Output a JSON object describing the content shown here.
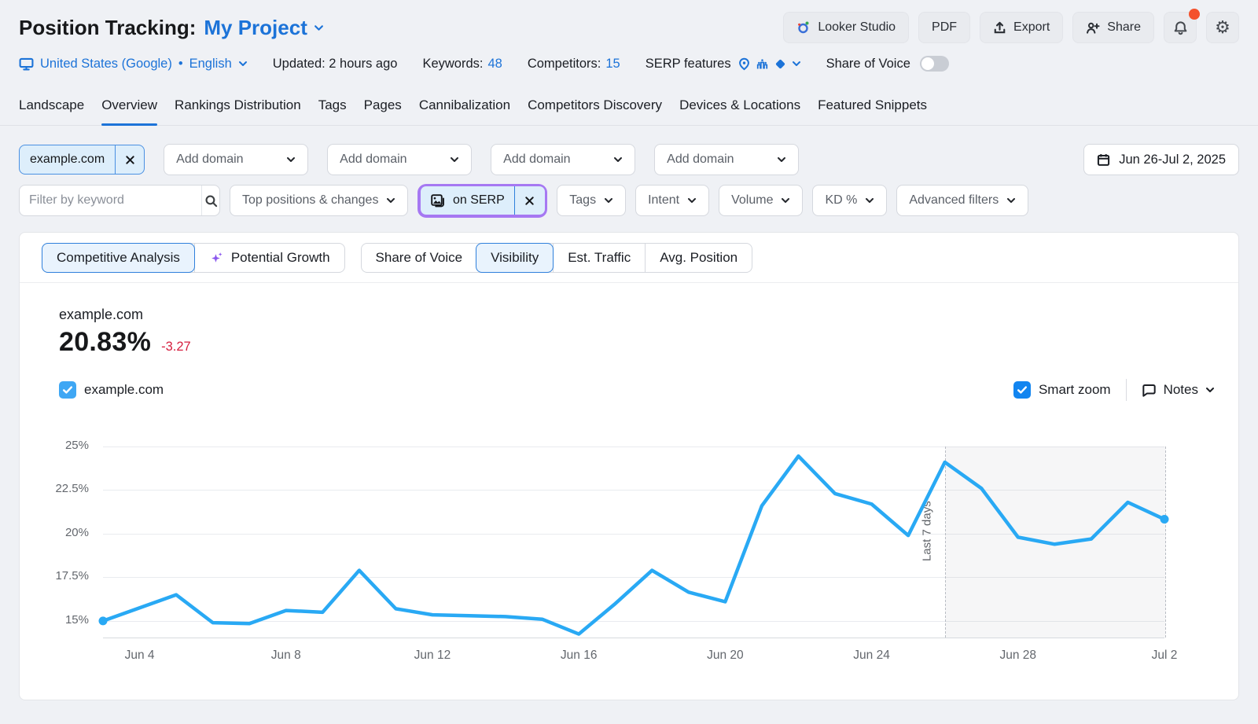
{
  "page": {
    "title": "Position Tracking:",
    "project_name": "My Project"
  },
  "toolbar": {
    "looker_studio": "Looker Studio",
    "pdf": "PDF",
    "export": "Export",
    "share": "Share"
  },
  "meta": {
    "location": "United States (Google)",
    "dot": "•",
    "language": "English",
    "updated": "Updated: 2 hours ago",
    "keywords_label": "Keywords:",
    "keywords_value": "48",
    "competitors_label": "Competitors:",
    "competitors_value": "15",
    "serp_features_label": "SERP features",
    "share_of_voice_label": "Share of Voice"
  },
  "tabs": {
    "items": [
      "Landscape",
      "Overview",
      "Rankings Distribution",
      "Tags",
      "Pages",
      "Cannibalization",
      "Competitors Discovery",
      "Devices & Locations",
      "Featured Snippets"
    ],
    "active": "Overview"
  },
  "filters": {
    "domain_chip": "example.com",
    "add_domain": "Add domain",
    "date_range": "Jun 26-Jul 2, 2025",
    "keyword_placeholder": "Filter by keyword",
    "top_positions": "Top positions & changes",
    "on_serp": "on SERP",
    "tags": "Tags",
    "intent": "Intent",
    "volume": "Volume",
    "kd": "KD %",
    "advanced": "Advanced filters"
  },
  "panel": {
    "view_toggle": {
      "competitive": "Competitive Analysis",
      "potential": "Potential Growth"
    },
    "metric_tabs": {
      "sov": "Share of Voice",
      "visibility": "Visibility",
      "traffic": "Est. Traffic",
      "avg": "Avg. Position"
    },
    "metric": {
      "domain": "example.com",
      "value": "20.83%",
      "change": "-3.27"
    },
    "legend": {
      "domain": "example.com",
      "smart_zoom": "Smart zoom",
      "notes": "Notes"
    }
  },
  "chart_data": {
    "type": "line",
    "series": [
      {
        "name": "example.com",
        "color": "#29a9f4",
        "values": [
          15.0,
          15.75,
          16.5,
          14.9,
          14.85,
          15.6,
          15.5,
          17.9,
          15.7,
          15.35,
          15.3,
          15.25,
          15.1,
          14.25,
          16.0,
          17.9,
          16.65,
          16.1,
          21.6,
          24.45,
          22.3,
          21.7,
          19.9,
          24.1,
          22.6,
          19.8,
          19.4,
          19.7,
          21.8,
          20.83
        ]
      }
    ],
    "x": [
      "Jun 3",
      "Jun 4",
      "Jun 5",
      "Jun 6",
      "Jun 7",
      "Jun 8",
      "Jun 9",
      "Jun 10",
      "Jun 11",
      "Jun 12",
      "Jun 13",
      "Jun 14",
      "Jun 15",
      "Jun 16",
      "Jun 17",
      "Jun 18",
      "Jun 19",
      "Jun 20",
      "Jun 21",
      "Jun 22",
      "Jun 23",
      "Jun 24",
      "Jun 25",
      "Jun 26",
      "Jun 27",
      "Jun 28",
      "Jun 29",
      "Jun 30",
      "Jul 1",
      "Jul 2"
    ],
    "x_tick_labels": [
      "Jun 4",
      "Jun 8",
      "Jun 12",
      "Jun 16",
      "Jun 20",
      "Jun 24",
      "Jun 28",
      "Jul 2"
    ],
    "y_ticks": [
      15,
      17.5,
      20,
      22.5,
      25
    ],
    "y_tick_labels": [
      "15%",
      "17.5%",
      "20%",
      "22.5%",
      "25%"
    ],
    "ylim": [
      14.05,
      25
    ],
    "grid": true,
    "legend_position": "top-left",
    "annotation": {
      "label": "Last 7 days",
      "from": "Jun 26",
      "to": "Jul 2"
    },
    "markers": [
      "Jun 3",
      "Jul 2"
    ]
  },
  "colors": {
    "accent": "#1c73d8",
    "line": "#29a9f4",
    "negative": "#d61f3f",
    "highlight": "#a678f2",
    "badge": "#f4512c"
  }
}
